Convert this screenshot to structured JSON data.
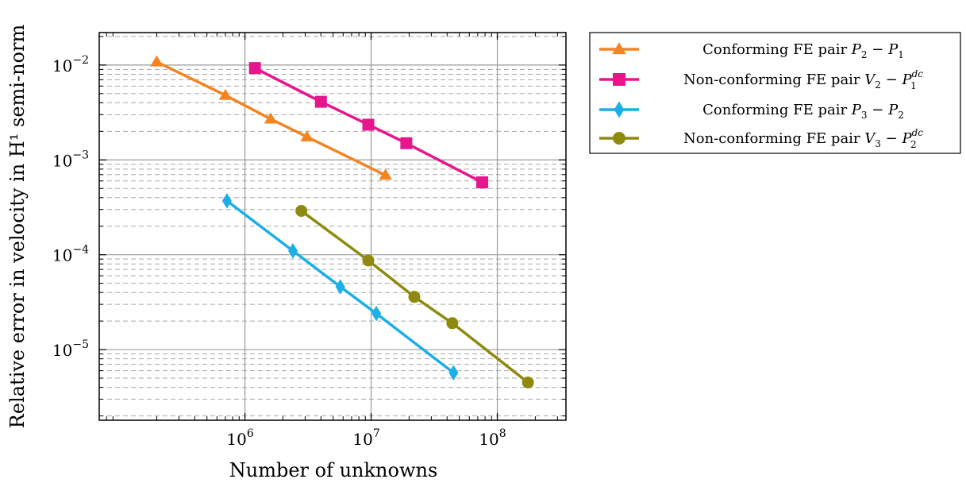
{
  "chart_data": {
    "type": "line",
    "x_scale": "log",
    "y_scale": "log",
    "xlim": [
      70000,
      350000000
    ],
    "ylim": [
      1.8e-06,
      0.022
    ],
    "grid": true,
    "legend_position": "outside-right-top",
    "xlabel": "Number of unknowns",
    "ylabel": "Relative error in velocity in H¹ semi-norm",
    "x_ticks": [
      {
        "value": 1000000,
        "base": "10",
        "exp": "6"
      },
      {
        "value": 10000000,
        "base": "10",
        "exp": "7"
      },
      {
        "value": 100000000,
        "base": "10",
        "exp": "8"
      }
    ],
    "y_ticks": [
      {
        "value": 0.01,
        "base": "10",
        "exp": "−2"
      },
      {
        "value": 0.001,
        "base": "10",
        "exp": "−3"
      },
      {
        "value": 0.0001,
        "base": "10",
        "exp": "−4"
      },
      {
        "value": 1e-05,
        "base": "10",
        "exp": "−5"
      }
    ],
    "series": [
      {
        "name": "Conforming FE pair P2 − P1",
        "legend": {
          "prefix": "Conforming FE pair ",
          "a": "P",
          "a_sub": "2",
          "a_sup": "",
          "mid": " − ",
          "b": "P",
          "b_sub": "1",
          "b_sup": ""
        },
        "color": "#f28522",
        "marker": "triangle",
        "x": [
          200000,
          700000,
          1600000,
          3100000,
          13000000
        ],
        "y": [
          0.0108,
          0.0048,
          0.0027,
          0.00175,
          0.00069
        ]
      },
      {
        "name": "Non-conforming FE pair V2 − P1^dc",
        "legend": {
          "prefix": "Non-conforming FE pair ",
          "a": "V",
          "a_sub": "2",
          "a_sup": "",
          "mid": " − ",
          "b": "P",
          "b_sub": "1",
          "b_sup": "dc"
        },
        "color": "#e6168c",
        "marker": "square",
        "x": [
          1200000,
          4000000,
          9500000,
          19000000,
          76000000
        ],
        "y": [
          0.0093,
          0.0041,
          0.00235,
          0.0015,
          0.00058
        ]
      },
      {
        "name": "Conforming FE pair P3 − P2",
        "legend": {
          "prefix": "Conforming FE pair ",
          "a": "P",
          "a_sub": "3",
          "a_sup": "",
          "mid": " − ",
          "b": "P",
          "b_sub": "2",
          "b_sup": ""
        },
        "color": "#1caee6",
        "marker": "diamond",
        "x": [
          720000,
          2400000,
          5700000,
          11000000,
          45000000
        ],
        "y": [
          0.00037,
          0.00011,
          4.6e-05,
          2.4e-05,
          5.7e-06
        ]
      },
      {
        "name": "Non-conforming FE pair V3 − P2^dc",
        "legend": {
          "prefix": "Non-conforming FE pair ",
          "a": "V",
          "a_sub": "3",
          "a_sup": "",
          "mid": " − ",
          "b": "P",
          "b_sub": "2",
          "b_sup": "dc"
        },
        "color": "#8f8a0f",
        "marker": "circle",
        "x": [
          2800000,
          9500000,
          22000000,
          44000000,
          175000000
        ],
        "y": [
          0.00029,
          8.7e-05,
          3.6e-05,
          1.9e-05,
          4.5e-06
        ]
      }
    ]
  }
}
